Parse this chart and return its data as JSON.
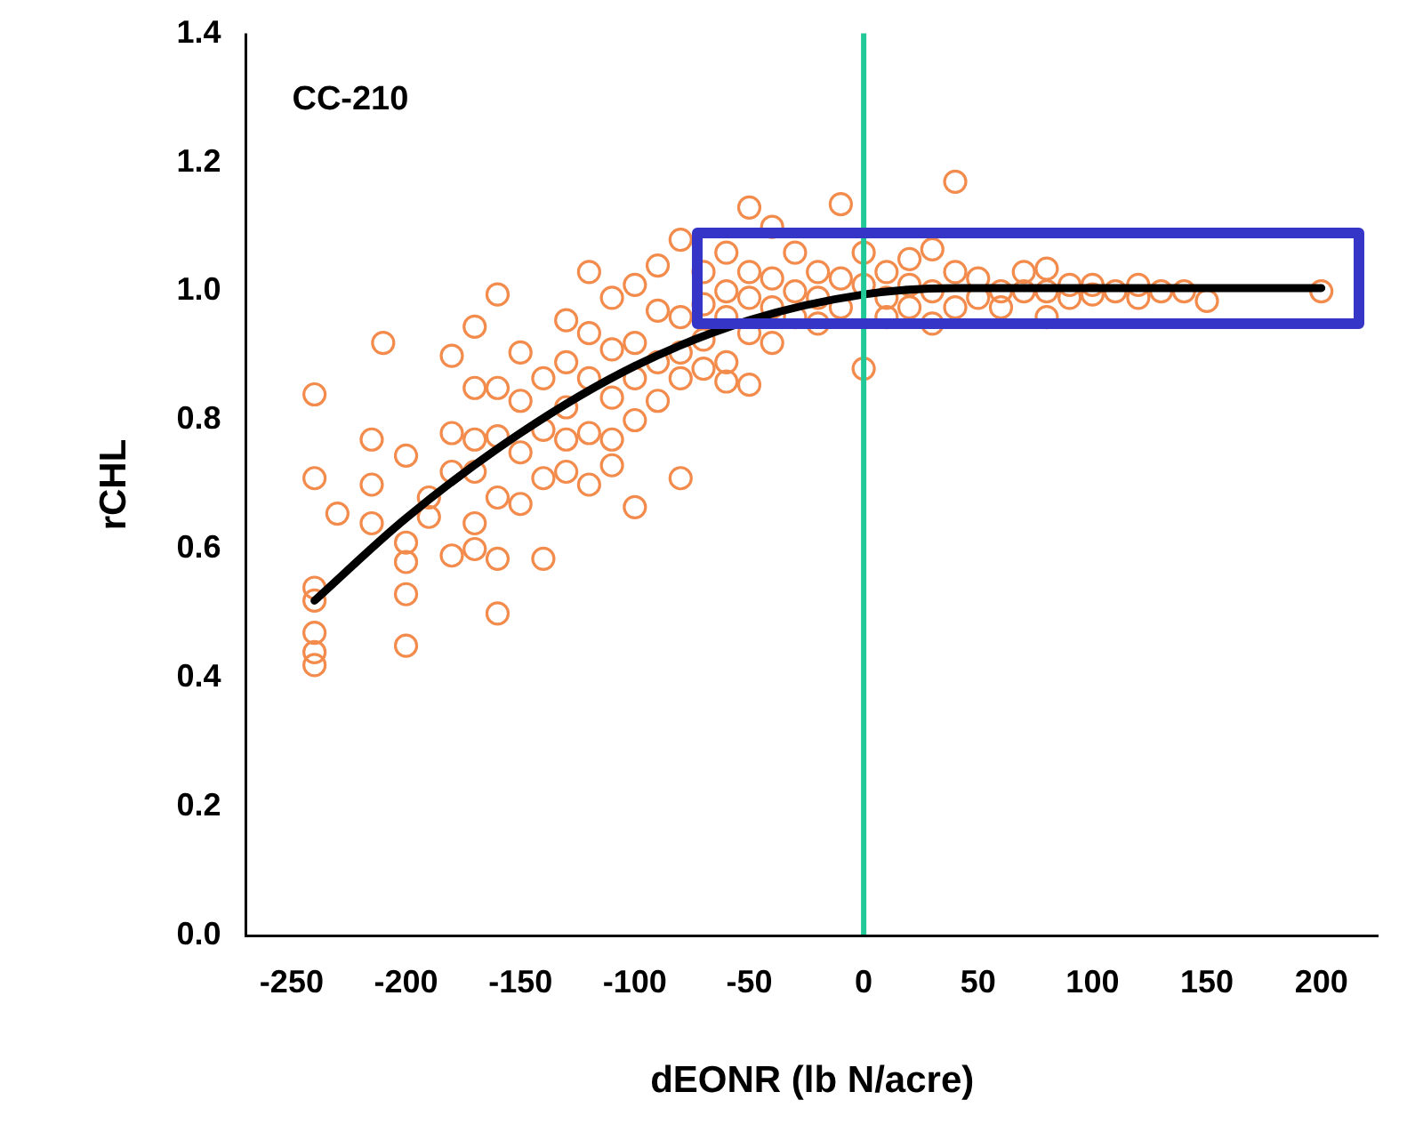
{
  "chart_data": {
    "type": "scatter",
    "xlabel": "dEONR (lb N/acre)",
    "ylabel": "rCHL",
    "annotations": [
      "CC-210"
    ],
    "xlim": [
      -270,
      225
    ],
    "xticks": [
      -250,
      -200,
      -150,
      -100,
      -50,
      0,
      50,
      100,
      150,
      200
    ],
    "ylim": [
      0,
      1.4
    ],
    "yticks": [
      {
        "value": 0,
        "label": "0.0"
      },
      {
        "value": 0.2,
        "label": "0.2"
      },
      {
        "value": 0.4,
        "label": "0.4"
      },
      {
        "value": 0.6,
        "label": "0.6"
      },
      {
        "value": 0.8,
        "label": "0.8"
      },
      {
        "value": 1,
        "label": "1.0"
      },
      {
        "value": 1.2,
        "label": "1.2"
      },
      {
        "value": 1.4,
        "label": "1.4"
      }
    ],
    "grid": false,
    "legend": false,
    "marker": "circle",
    "ref_lines": [
      {
        "axis": "x",
        "value": 0,
        "color": "#20c997"
      }
    ],
    "series": [
      {
        "type": "scatter",
        "color": "#f28b4c",
        "x": [
          -240,
          -240,
          -240,
          -240,
          -240,
          -240,
          -240,
          -230,
          -215,
          -215,
          -215,
          -210,
          -200,
          -200,
          -200,
          -200,
          -200,
          -190,
          -190,
          -180,
          -180,
          -180,
          -180,
          -170,
          -170,
          -170,
          -170,
          -170,
          -170,
          -160,
          -160,
          -160,
          -160,
          -160,
          -160,
          -150,
          -150,
          -150,
          -150,
          -140,
          -140,
          -140,
          -140,
          -130,
          -130,
          -130,
          -130,
          -130,
          -120,
          -120,
          -120,
          -120,
          -120,
          -110,
          -110,
          -110,
          -110,
          -110,
          -100,
          -100,
          -100,
          -100,
          -100,
          -90,
          -90,
          -90,
          -90,
          -80,
          -80,
          -80,
          -80,
          -80,
          -70,
          -70,
          -70,
          -70,
          -60,
          -60,
          -60,
          -60,
          -60,
          -50,
          -50,
          -50,
          -50,
          -50,
          -40,
          -40,
          -40,
          -40,
          -30,
          -30,
          -30,
          -20,
          -20,
          -20,
          -10,
          -10,
          -10,
          0,
          0,
          0,
          10,
          10,
          10,
          20,
          20,
          20,
          30,
          30,
          30,
          40,
          40,
          40,
          50,
          50,
          60,
          60,
          70,
          70,
          80,
          80,
          80,
          90,
          90,
          100,
          100,
          110,
          120,
          120,
          130,
          140,
          150,
          200
        ],
        "values": [
          0.84,
          0.71,
          0.54,
          0.52,
          0.47,
          0.44,
          0.42,
          0.655,
          0.77,
          0.7,
          0.64,
          0.92,
          0.745,
          0.61,
          0.58,
          0.53,
          0.45,
          0.65,
          0.68,
          0.78,
          0.72,
          0.9,
          0.59,
          0.945,
          0.85,
          0.77,
          0.64,
          0.72,
          0.6,
          0.995,
          0.85,
          0.775,
          0.68,
          0.5,
          0.585,
          0.905,
          0.83,
          0.75,
          0.67,
          0.865,
          0.785,
          0.71,
          0.585,
          0.955,
          0.89,
          0.82,
          0.77,
          0.72,
          1.03,
          0.935,
          0.865,
          0.78,
          0.7,
          0.99,
          0.91,
          0.835,
          0.77,
          0.73,
          1.01,
          0.92,
          0.865,
          0.8,
          0.665,
          1.04,
          0.97,
          0.89,
          0.83,
          1.08,
          0.96,
          0.905,
          0.71,
          0.865,
          1.03,
          0.98,
          0.925,
          0.88,
          1.06,
          1.0,
          0.96,
          0.89,
          0.86,
          1.13,
          1.03,
          0.99,
          0.935,
          0.855,
          1.1,
          1.02,
          0.975,
          0.92,
          1.06,
          1.0,
          0.96,
          1.03,
          0.99,
          0.95,
          1.135,
          1.02,
          0.975,
          0.88,
          1.01,
          1.06,
          1.03,
          0.99,
          0.96,
          1.01,
          1.05,
          0.975,
          1.065,
          1.0,
          0.95,
          1.17,
          1.03,
          0.975,
          1.02,
          0.99,
          1.0,
          0.975,
          1.03,
          1.0,
          1.035,
          1.0,
          0.96,
          1.01,
          0.99,
          1.01,
          0.995,
          1.0,
          1.01,
          0.99,
          1.0,
          1.0,
          0.985,
          1.0
        ]
      },
      {
        "type": "line",
        "color": "#000000",
        "marker": "none",
        "x": [
          -240,
          -200,
          -150,
          -100,
          -50,
          0,
          40,
          200
        ],
        "values": [
          0.52,
          0.648,
          0.78,
          0.884,
          0.955,
          0.995,
          1.005,
          1.005
        ]
      }
    ]
  }
}
